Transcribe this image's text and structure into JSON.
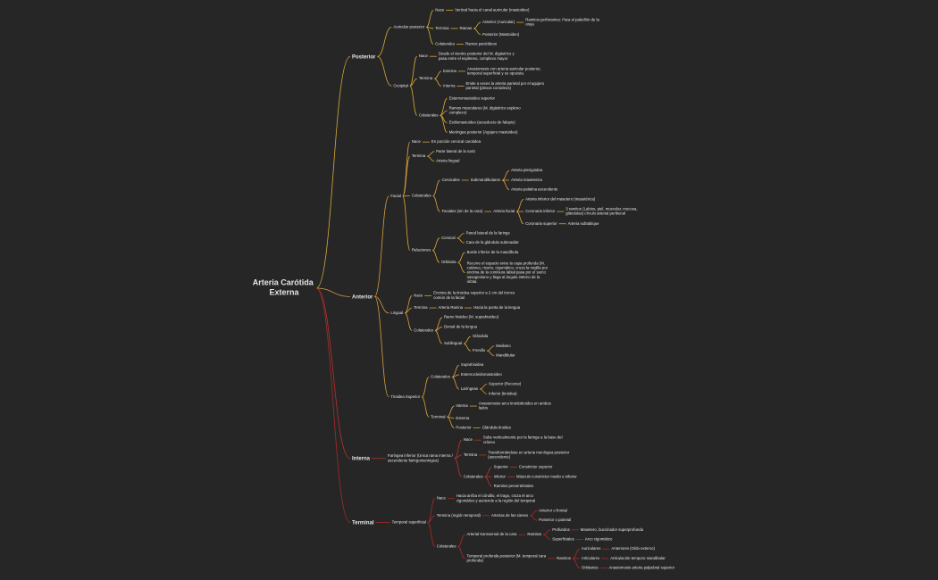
{
  "root": {
    "label": "Arteria Carótida Externa",
    "children": [
      {
        "label": "Posterior",
        "children": [
          {
            "label": "Auricular posterior",
            "children": [
              {
                "label": "Nace",
                "children": [
                  {
                    "label": "Vertical hacia el canal auricular (mastoideo)"
                  }
                ]
              },
              {
                "label": "Termina",
                "children": [
                  {
                    "label": "Ramas",
                    "children": [
                      {
                        "label": "Anterior (Auricular)",
                        "children": [
                          {
                            "label": "Ramitos perforantes: Para el pabellón de la oreja"
                          }
                        ]
                      },
                      {
                        "label": "Posterior (Mastoideo)"
                      }
                    ]
                  }
                ]
              },
              {
                "label": "Colaterales",
                "children": [
                  {
                    "label": "Ramos parotídeos"
                  }
                ]
              }
            ]
          },
          {
            "label": "Occipital",
            "children": [
              {
                "label": "Nace",
                "children": [
                  {
                    "label": "Desde el vientre posterior del M. digástrico y pasa entre el espleneo, complexo mayor"
                  }
                ]
              },
              {
                "label": "Termina",
                "children": [
                  {
                    "label": "Externa",
                    "children": [
                      {
                        "label": "Anastomosis con arteria auricular posterior, temporal superficial y su opuesta."
                      }
                    ]
                  },
                  {
                    "label": "Interna",
                    "children": [
                      {
                        "label": "Emite a veces la arteria parietal por el agujero parietal (plexos coroideos)"
                      }
                    ]
                  }
                ]
              },
              {
                "label": "Colaterales",
                "children": [
                  {
                    "label": "Esternomastoideo superior"
                  },
                  {
                    "label": "Ramos musculares (M. digástrico espleno complexo)"
                  },
                  {
                    "label": "Estilomastoideo (acueducto de falopio)"
                  },
                  {
                    "label": "Meníngea posterior (Agujero mastoideo)"
                  }
                ]
              }
            ]
          }
        ]
      },
      {
        "label": "Anterior",
        "children": [
          {
            "label": "Facial",
            "children": [
              {
                "label": "Nace",
                "children": [
                  {
                    "label": "En porción cervical carotidea"
                  }
                ]
              },
              {
                "label": "Termina",
                "children": [
                  {
                    "label": "Parte lateral de la nariz"
                  },
                  {
                    "label": "Arteria lingual"
                  }
                ]
              },
              {
                "label": "Colaterales",
                "children": [
                  {
                    "label": "Cervicales",
                    "children": [
                      {
                        "label": "Submandibulares",
                        "children": [
                          {
                            "label": "Arteria pterigoidea"
                          },
                          {
                            "label": "Arteria maseterica"
                          },
                          {
                            "label": "Arteria palatina ascendente"
                          }
                        ]
                      }
                    ]
                  },
                  {
                    "label": "Faciales (sin de la cara)",
                    "children": [
                      {
                        "label": "Arteria facial",
                        "children": [
                          {
                            "label": "Arteria inferior del masetero (masetérica)"
                          },
                          {
                            "label": "Coronaria inferior",
                            "children": [
                              {
                                "label": "3 ramitos (Labios, piel, muscular, mucosa, glándulas) círculo arterial peribucal"
                              }
                            ]
                          },
                          {
                            "label": "Coronaria superior",
                            "children": [
                              {
                                "label": "Arteria subtabique"
                              }
                            ]
                          }
                        ]
                      }
                    ]
                  }
                ]
              },
              {
                "label": "Relaciones",
                "children": [
                  {
                    "label": "Cervical",
                    "children": [
                      {
                        "label": "Pared lateral de la faringe"
                      },
                      {
                        "label": "Cara de la glándula submaxilar"
                      }
                    ]
                  },
                  {
                    "label": "Orbitaria",
                    "children": [
                      {
                        "label": "Borde inferior de la mandíbula"
                      },
                      {
                        "label": "Recorre el espacio entre la capa profunda (M. cutáneo, risorio, cigomático, cruza la mejilla por encima de la comisura labial pasa por el surco nasogeniano y llega al ángulo interno de la órbita."
                      }
                    ]
                  }
                ]
              }
            ]
          },
          {
            "label": "Lingual",
            "children": [
              {
                "label": "Nace",
                "children": [
                  {
                    "label": "Encima de la tiroidea superior a 2 cm del tronco común de la facial"
                  }
                ]
              },
              {
                "label": "Termina",
                "children": [
                  {
                    "label": "Arteria Ranina",
                    "children": [
                      {
                        "label": "Hacia la punta de la lengua"
                      }
                    ]
                  }
                ]
              },
              {
                "label": "Colaterales",
                "children": [
                  {
                    "label": "Ramo hioideo (M. suprahioideo)"
                  },
                  {
                    "label": "Dorsal de la lengua"
                  },
                  {
                    "label": "Sublingual",
                    "children": [
                      {
                        "label": "Glándula"
                      },
                      {
                        "label": "Frenillo",
                        "children": [
                          {
                            "label": "Mediano"
                          },
                          {
                            "label": "Mandibular"
                          }
                        ]
                      }
                    ]
                  }
                ]
              }
            ]
          },
          {
            "label": "Tiroidea Superior",
            "children": [
              {
                "label": "Colaterales",
                "children": [
                  {
                    "label": "Suprahioidea"
                  },
                  {
                    "label": "Esternocleidomastoideo"
                  },
                  {
                    "label": "Laríngeas",
                    "children": [
                      {
                        "label": "Superior (Recurso)"
                      },
                      {
                        "label": "Inferior (tiroidea)"
                      }
                    ]
                  }
                ]
              },
              {
                "label": "Terminal",
                "children": [
                  {
                    "label": "Interna",
                    "children": [
                      {
                        "label": "Anastomosis arco tiroidotiroides en ambos lados"
                      }
                    ]
                  },
                  {
                    "label": "Externa"
                  },
                  {
                    "label": "Posterior",
                    "children": [
                      {
                        "label": "Glándula tiroides"
                      }
                    ]
                  }
                ]
              }
            ]
          }
        ]
      },
      {
        "label": "Interna",
        "children": [
          {
            "label": "Faríngea inferior (Única rama interna / ascendente faringomeningea)",
            "children": [
              {
                "label": "Nace",
                "children": [
                  {
                    "label": "Sube verticalmente por la faringe a la base del cráneo"
                  }
                ]
              },
              {
                "label": "Termina",
                "children": [
                  {
                    "label": "Transformándose en arteria meníngea posterior (ascendente)"
                  }
                ]
              },
              {
                "label": "Colaterales",
                "children": [
                  {
                    "label": "Superior",
                    "children": [
                      {
                        "label": "Constrictor superior"
                      }
                    ]
                  },
                  {
                    "label": "Inferior",
                    "children": [
                      {
                        "label": "Músculo constrictor medio e inferior"
                      }
                    ]
                  },
                  {
                    "label": "Ramitos prevertebrales"
                  }
                ]
              }
            ]
          }
        ]
      },
      {
        "label": "Terminal",
        "children": [
          {
            "label": "Temporal superficial",
            "children": [
              {
                "label": "Nace",
                "children": [
                  {
                    "label": "Hacia arriba el cóndilo, el trago, cruza el arco cigomático y asciende a la región del temporal"
                  }
                ]
              },
              {
                "label": "Termina (región temporal)",
                "children": [
                  {
                    "label": "Arterias de las sienes",
                    "children": [
                      {
                        "label": "Anterior o frontal"
                      },
                      {
                        "label": "Posterior o parietal"
                      }
                    ]
                  }
                ]
              },
              {
                "label": "Colaterales",
                "children": [
                  {
                    "label": "Arterial transversal de la cara",
                    "children": [
                      {
                        "label": "Ramitos",
                        "children": [
                          {
                            "label": "Profundos",
                            "children": [
                              {
                                "label": "Masetero, buccinador superprofunda"
                              }
                            ]
                          },
                          {
                            "label": "Superficiales",
                            "children": [
                              {
                                "label": "Arco cigomático"
                              }
                            ]
                          }
                        ]
                      }
                    ]
                  },
                  {
                    "label": "Temporal profunda posterior (M. temporal cara profunda)",
                    "children": [
                      {
                        "label": "Ramitos",
                        "children": [
                          {
                            "label": "Auriculares",
                            "children": [
                              {
                                "label": "Anteriores (Oído externo)"
                              }
                            ]
                          },
                          {
                            "label": "Articulares",
                            "children": [
                              {
                                "label": "Articulación temporo mandibular"
                              }
                            ]
                          },
                          {
                            "label": "Orbitarios",
                            "children": [
                              {
                                "label": "Anastomosis arteria palpebral superior"
                              }
                            ]
                          }
                        ]
                      }
                    ]
                  }
                ]
              }
            ]
          }
        ]
      }
    ]
  }
}
